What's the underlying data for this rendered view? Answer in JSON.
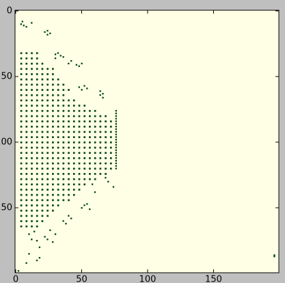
{
  "chart_data": {
    "type": "image",
    "color": "#00441b",
    "background": "#ffffe5",
    "xlim": [
      0,
      200
    ],
    "ylim": [
      0,
      200
    ],
    "y_inverted": true,
    "xticks": [
      0,
      50,
      100,
      150
    ],
    "yticks": [
      0,
      50,
      100,
      150
    ],
    "rows": [
      {
        "y": 32,
        "x": [
          4,
          8,
          12,
          16
        ]
      },
      {
        "y": 36,
        "x": [
          4,
          8,
          12,
          16
        ]
      },
      {
        "y": 40,
        "x": [
          4,
          8,
          12,
          16,
          20
        ]
      },
      {
        "y": 44,
        "x": [
          4,
          8,
          12,
          16,
          20,
          24,
          28
        ]
      },
      {
        "y": 48,
        "x": [
          4,
          8,
          12,
          16,
          20,
          24,
          28
        ]
      },
      {
        "y": 52,
        "x": [
          4,
          8,
          12,
          16,
          20,
          24,
          28,
          32
        ]
      },
      {
        "y": 56,
        "x": [
          4,
          8,
          12,
          16,
          20,
          24,
          28,
          32,
          36
        ]
      },
      {
        "y": 60,
        "x": [
          4,
          8,
          12,
          16,
          20,
          24,
          28,
          32,
          36,
          40
        ]
      },
      {
        "y": 64,
        "x": [
          4,
          8,
          12,
          16,
          20,
          24,
          28,
          32,
          36
        ]
      },
      {
        "y": 68,
        "x": [
          4,
          8,
          12,
          16,
          20,
          24,
          28,
          32,
          36,
          40,
          44
        ]
      },
      {
        "y": 72,
        "x": [
          4,
          8,
          12,
          16,
          20,
          24,
          28,
          32,
          36,
          40,
          44,
          48,
          52
        ]
      },
      {
        "y": 76,
        "x": [
          4,
          8,
          12,
          16,
          20,
          24,
          28,
          32,
          36,
          40,
          44,
          48,
          52,
          56,
          60
        ]
      },
      {
        "y": 80,
        "x": [
          4,
          8,
          12,
          16,
          20,
          24,
          28,
          32,
          36,
          40,
          44,
          48,
          52,
          56,
          60,
          64,
          68
        ]
      },
      {
        "y": 84,
        "x": [
          4,
          8,
          12,
          16,
          20,
          24,
          28,
          32,
          36,
          40,
          44,
          48,
          52,
          56,
          60,
          64,
          68,
          72
        ]
      },
      {
        "y": 88,
        "x": [
          4,
          8,
          12,
          16,
          20,
          24,
          28,
          32,
          36,
          40,
          44,
          48,
          52,
          56,
          60,
          64,
          68,
          72
        ]
      },
      {
        "y": 92,
        "x": [
          4,
          8,
          12,
          16,
          20,
          24,
          28,
          32,
          36,
          40,
          44,
          48,
          52,
          56,
          60,
          64,
          68,
          72
        ]
      },
      {
        "y": 96,
        "x": [
          4,
          8,
          12,
          16,
          20,
          24,
          28,
          32,
          36,
          40,
          44,
          48,
          52,
          56,
          60,
          64,
          68,
          72
        ]
      },
      {
        "y": 100,
        "x": [
          4,
          8,
          12,
          16,
          20,
          24,
          28,
          32,
          36,
          40,
          44,
          48,
          52,
          56,
          60,
          64,
          68,
          72
        ]
      },
      {
        "y": 104,
        "x": [
          4,
          8,
          12,
          16,
          20,
          24,
          28,
          32,
          36,
          40,
          44,
          48,
          52,
          56,
          60,
          64,
          68,
          72
        ]
      },
      {
        "y": 108,
        "x": [
          4,
          8,
          12,
          16,
          20,
          24,
          28,
          32,
          36,
          40,
          44,
          48,
          52,
          56,
          60,
          64,
          68,
          72
        ]
      },
      {
        "y": 112,
        "x": [
          4,
          8,
          12,
          16,
          20,
          24,
          28,
          32,
          36,
          40,
          44,
          48,
          52,
          56,
          60,
          64,
          68,
          72
        ]
      },
      {
        "y": 116,
        "x": [
          4,
          8,
          12,
          16,
          20,
          24,
          28,
          32,
          36,
          40,
          44,
          48,
          52,
          56,
          60,
          64,
          68,
          72
        ]
      },
      {
        "y": 120,
        "x": [
          4,
          8,
          12,
          16,
          20,
          24,
          28,
          32,
          36,
          40,
          44,
          48,
          52,
          56,
          60,
          64,
          68,
          72
        ]
      },
      {
        "y": 124,
        "x": [
          4,
          8,
          12,
          16,
          20,
          24,
          28,
          32,
          36,
          40,
          44,
          48,
          52,
          56,
          60,
          64,
          68
        ]
      },
      {
        "y": 128,
        "x": [
          4,
          8,
          12,
          16,
          20,
          24,
          28,
          32,
          36,
          40,
          44,
          48,
          52,
          56,
          60
        ]
      },
      {
        "y": 132,
        "x": [
          4,
          8,
          12,
          16,
          20,
          24,
          28,
          32,
          36,
          40,
          44,
          48,
          52
        ]
      },
      {
        "y": 136,
        "x": [
          4,
          8,
          12,
          16,
          20,
          24,
          28,
          32,
          36,
          40,
          44,
          48
        ]
      },
      {
        "y": 140,
        "x": [
          4,
          8,
          12,
          16,
          20,
          24,
          28,
          32,
          36,
          40,
          44
        ]
      },
      {
        "y": 144,
        "x": [
          4,
          8,
          12,
          16,
          20,
          24,
          28,
          32,
          36,
          40
        ]
      },
      {
        "y": 148,
        "x": [
          4,
          8,
          12,
          16,
          20,
          24,
          28,
          32
        ]
      },
      {
        "y": 152,
        "x": [
          4,
          8,
          12,
          16,
          20,
          24,
          28
        ]
      },
      {
        "y": 156,
        "x": [
          4,
          8,
          12,
          16,
          20,
          24
        ]
      },
      {
        "y": 160,
        "x": [
          4,
          8,
          12,
          16,
          20
        ]
      },
      {
        "y": 164,
        "x": [
          4,
          8,
          12,
          16
        ]
      }
    ],
    "cells": [
      [
        5,
        8
      ],
      [
        4,
        10
      ],
      [
        6,
        11
      ],
      [
        8,
        12
      ],
      [
        12,
        9
      ],
      [
        24,
        15
      ],
      [
        22,
        16
      ],
      [
        26,
        17
      ],
      [
        24,
        18
      ],
      [
        30,
        33
      ],
      [
        32,
        32
      ],
      [
        34,
        34
      ],
      [
        30,
        36
      ],
      [
        36,
        35
      ],
      [
        40,
        40
      ],
      [
        42,
        38
      ],
      [
        46,
        41
      ],
      [
        48,
        42
      ],
      [
        50,
        40
      ],
      [
        48,
        58
      ],
      [
        50,
        60
      ],
      [
        52,
        57
      ],
      [
        54,
        59
      ],
      [
        64,
        64
      ],
      [
        66,
        66
      ],
      [
        66,
        63
      ],
      [
        64,
        61
      ],
      [
        76,
        76
      ],
      [
        76,
        78
      ],
      [
        76,
        80
      ],
      [
        76,
        82
      ],
      [
        76,
        84
      ],
      [
        76,
        86
      ],
      [
        76,
        88
      ],
      [
        76,
        90
      ],
      [
        76,
        92
      ],
      [
        76,
        94
      ],
      [
        76,
        96
      ],
      [
        76,
        98
      ],
      [
        76,
        100
      ],
      [
        76,
        102
      ],
      [
        76,
        104
      ],
      [
        76,
        106
      ],
      [
        76,
        108
      ],
      [
        76,
        110
      ],
      [
        76,
        112
      ],
      [
        76,
        114
      ],
      [
        76,
        116
      ],
      [
        76,
        118
      ],
      [
        76,
        120
      ],
      [
        74,
        134
      ],
      [
        70,
        130
      ],
      [
        68,
        127
      ],
      [
        60,
        138
      ],
      [
        58,
        132
      ],
      [
        52,
        148
      ],
      [
        54,
        147
      ],
      [
        50,
        150
      ],
      [
        56,
        151
      ],
      [
        40,
        156
      ],
      [
        42,
        158
      ],
      [
        36,
        160
      ],
      [
        38,
        162
      ],
      [
        26,
        167
      ],
      [
        30,
        170
      ],
      [
        24,
        174
      ],
      [
        28,
        176
      ],
      [
        22,
        172
      ],
      [
        14,
        168
      ],
      [
        10,
        170
      ],
      [
        12,
        174
      ],
      [
        16,
        175
      ],
      [
        18,
        180
      ],
      [
        10,
        185
      ],
      [
        16,
        190
      ],
      [
        18,
        188
      ],
      [
        8,
        192
      ],
      [
        2,
        198
      ],
      [
        196,
        187
      ],
      [
        196,
        186
      ]
    ]
  }
}
